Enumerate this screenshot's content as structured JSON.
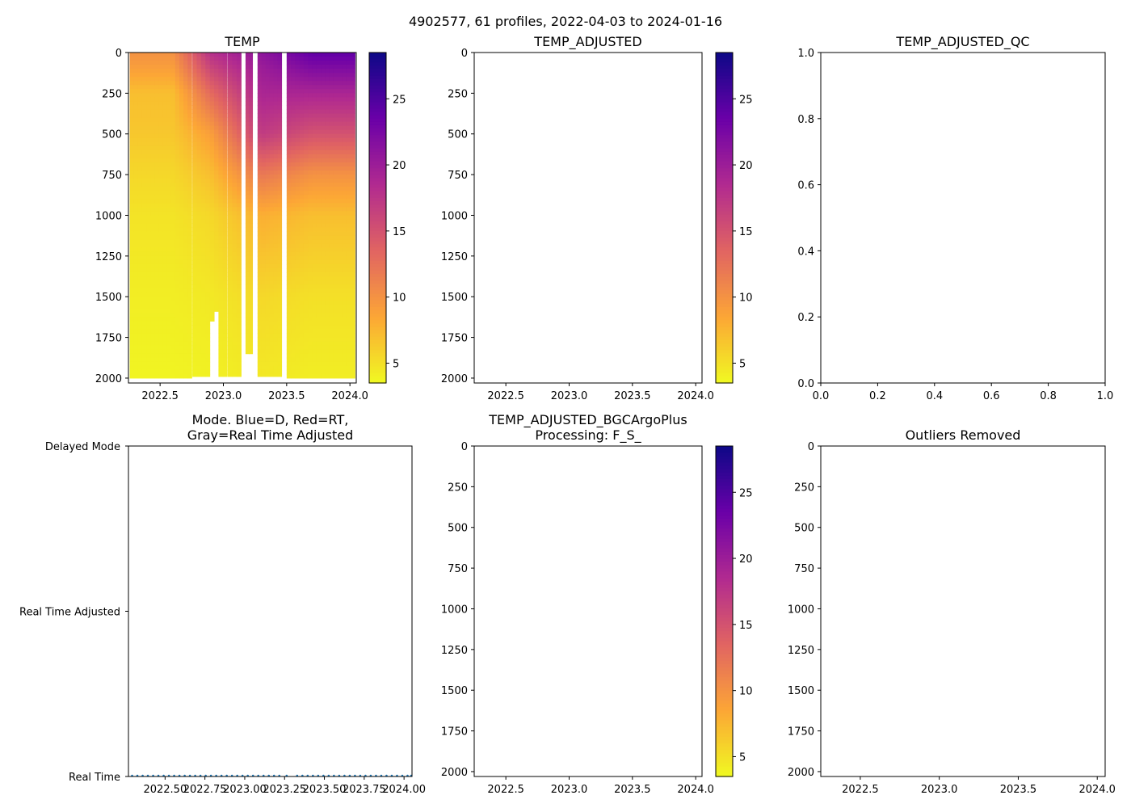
{
  "figure": {
    "suptitle": "4902577, 61 profiles, 2022-04-03 to 2024-01-16"
  },
  "colormap": {
    "name": "plasma",
    "stops": [
      "#f0f921",
      "#fca636",
      "#e16462",
      "#b12a90",
      "#6a00a8",
      "#0d0887"
    ],
    "vmin": 3.5,
    "vmax": 28.5,
    "ticks": [
      "5",
      "10",
      "15",
      "20",
      "25"
    ]
  },
  "chart_data": [
    {
      "id": "temp",
      "type": "heatmap",
      "title": "TEMP",
      "xlim": [
        2022.25,
        2024.05
      ],
      "ylim": [
        2030,
        0
      ],
      "xticks": [
        "2022.5",
        "2023.0",
        "2023.5",
        "2024.0"
      ],
      "yticks": [
        "0",
        "250",
        "500",
        "750",
        "1000",
        "1250",
        "1500",
        "1750",
        "2000"
      ],
      "colorbar": true,
      "profiles_segments": [
        {
          "start": 2022.26,
          "end": 2022.75,
          "max_depth": 2000
        },
        {
          "start": 2022.755,
          "end": 2023.03,
          "max_depth": 1990
        },
        {
          "start": 2023.035,
          "end": 2023.14,
          "max_depth": 1990
        },
        {
          "start": 2023.175,
          "end": 2023.23,
          "max_depth": 1850
        },
        {
          "start": 2023.27,
          "end": 2023.46,
          "max_depth": 1990
        },
        {
          "start": 2023.5,
          "end": 2024.04,
          "max_depth": 2000
        }
      ],
      "profile_gaps": [
        [
          2022.75,
          2022.755
        ],
        [
          2023.03,
          2023.035
        ],
        [
          2023.14,
          2023.175
        ],
        [
          2023.23,
          2023.27
        ],
        [
          2023.46,
          2023.5
        ]
      ],
      "depth_gaps": [
        [
          2022.9,
          2022.92,
          1650
        ],
        [
          2022.92,
          2022.94,
          1800
        ],
        [
          2022.94,
          2022.96,
          1590
        ]
      ],
      "depth_profile": {
        "depths": [
          0,
          100,
          250,
          500,
          750,
          1000,
          1500,
          2000
        ],
        "temp_2022": [
          10,
          9,
          7,
          6.5,
          5.5,
          4.8,
          4.2,
          3.8
        ],
        "temp_2023_early": [
          18,
          16,
          13,
          9,
          7,
          5.5,
          4.5,
          4
        ],
        "temp_2023_mid": [
          21,
          20,
          19,
          17,
          12,
          8,
          5.5,
          4.5
        ],
        "temp_2023_late": [
          24,
          22,
          19,
          15,
          10,
          7,
          5,
          4.2
        ]
      }
    },
    {
      "id": "temp_adjusted",
      "type": "heatmap",
      "title": "TEMP_ADJUSTED",
      "xlim": [
        2022.25,
        2024.05
      ],
      "ylim": [
        2030,
        0
      ],
      "xticks": [
        "2022.5",
        "2023.0",
        "2023.5",
        "2024.0"
      ],
      "yticks": [
        "0",
        "250",
        "500",
        "750",
        "1000",
        "1250",
        "1500",
        "1750",
        "2000"
      ],
      "colorbar": true,
      "values": []
    },
    {
      "id": "temp_adjusted_qc",
      "type": "scatter",
      "title": "TEMP_ADJUSTED_QC",
      "xlim": [
        0,
        1
      ],
      "ylim": [
        0,
        1
      ],
      "xticks": [
        "0.0",
        "0.2",
        "0.4",
        "0.6",
        "0.8",
        "1.0"
      ],
      "yticks": [
        "0.0",
        "0.2",
        "0.4",
        "0.6",
        "0.8",
        "1.0"
      ],
      "values": []
    },
    {
      "id": "mode",
      "type": "scatter",
      "title_lines": [
        "Mode. Blue=D, Red=RT,",
        "Gray=Real Time Adjusted"
      ],
      "xlim": [
        2022.27,
        2024.05
      ],
      "xticks": [
        "2022.50",
        "2022.75",
        "2023.00",
        "2023.25",
        "2023.50",
        "2023.75",
        "2024.00"
      ],
      "ycategories": [
        "Real Time",
        "Real Time Adjusted",
        "Delayed Mode"
      ],
      "point_color": "#1f77b4",
      "points_x": [
        2022.26,
        2022.293,
        2022.326,
        2022.359,
        2022.392,
        2022.425,
        2022.458,
        2022.491,
        2022.524,
        2022.557,
        2022.59,
        2022.623,
        2022.656,
        2022.689,
        2022.722,
        2022.755,
        2022.788,
        2022.821,
        2022.854,
        2022.887,
        2022.92,
        2022.953,
        2022.986,
        2023.019,
        2023.052,
        2023.085,
        2023.118,
        2023.151,
        2023.184,
        2023.217,
        2023.263,
        2023.329,
        2023.362,
        2023.395,
        2023.428,
        2023.461,
        2023.494,
        2023.527,
        2023.56,
        2023.593,
        2023.626,
        2023.659,
        2023.692,
        2023.725,
        2023.758,
        2023.791,
        2023.824,
        2023.857,
        2023.89,
        2023.923,
        2023.956,
        2023.989,
        2024.022,
        2024.045
      ],
      "points_category": "Real Time"
    },
    {
      "id": "temp_adjusted_bgc",
      "type": "heatmap",
      "title_lines": [
        "TEMP_ADJUSTED_BGCArgoPlus",
        "Processing: F_S_"
      ],
      "xlim": [
        2022.25,
        2024.05
      ],
      "ylim": [
        2030,
        0
      ],
      "xticks": [
        "2022.5",
        "2023.0",
        "2023.5",
        "2024.0"
      ],
      "yticks": [
        "0",
        "250",
        "500",
        "750",
        "1000",
        "1250",
        "1500",
        "1750",
        "2000"
      ],
      "colorbar": true,
      "values": []
    },
    {
      "id": "outliers",
      "type": "heatmap",
      "title": "Outliers Removed",
      "xlim": [
        2022.25,
        2024.05
      ],
      "ylim": [
        2030,
        0
      ],
      "xticks": [
        "2022.5",
        "2023.0",
        "2023.5",
        "2024.0"
      ],
      "yticks": [
        "0",
        "250",
        "500",
        "750",
        "1000",
        "1250",
        "1500",
        "1750",
        "2000"
      ],
      "colorbar": false,
      "values": []
    }
  ]
}
